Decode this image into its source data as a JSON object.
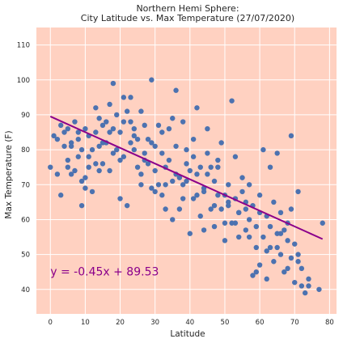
{
  "chart_data": {
    "type": "scatter",
    "title_line1": "Northern Hemi Sphere:",
    "title_line2": "City Latitude vs. Max Temperature (27/07/2020)",
    "xlabel": "Latitude",
    "ylabel": "Max Temperature (F)",
    "xlim": [
      -4,
      82
    ],
    "ylim": [
      33,
      115
    ],
    "x_ticks": [
      0,
      10,
      20,
      30,
      40,
      50,
      60,
      70,
      80
    ],
    "y_ticks": [
      40,
      50,
      60,
      70,
      80,
      90,
      100,
      110
    ],
    "grid": true,
    "background": "#FFD1C1",
    "grid_color": "#FFFFFF",
    "marker_color": "#4C72B0",
    "regression": {
      "slope": -0.45,
      "intercept": 89.53,
      "x_range": [
        0,
        78
      ],
      "color": "#8B008B",
      "equation": "y = -0.45x + 89.53"
    },
    "points": [
      [
        0,
        75
      ],
      [
        1,
        84
      ],
      [
        2,
        83
      ],
      [
        3,
        67
      ],
      [
        4,
        81
      ],
      [
        5,
        75
      ],
      [
        6,
        73
      ],
      [
        5,
        86
      ],
      [
        7,
        88
      ],
      [
        6,
        82
      ],
      [
        8,
        85
      ],
      [
        7,
        74
      ],
      [
        9,
        71
      ],
      [
        9,
        80
      ],
      [
        10,
        72
      ],
      [
        10,
        69
      ],
      [
        8,
        83
      ],
      [
        9,
        64
      ],
      [
        11,
        75
      ],
      [
        11,
        84
      ],
      [
        12,
        68
      ],
      [
        12,
        80
      ],
      [
        13,
        85
      ],
      [
        13,
        92
      ],
      [
        14,
        81
      ],
      [
        14,
        89
      ],
      [
        15,
        82
      ],
      [
        15,
        76
      ],
      [
        16,
        82
      ],
      [
        16,
        88
      ],
      [
        17,
        93
      ],
      [
        17,
        74
      ],
      [
        18,
        99
      ],
      [
        18,
        86
      ],
      [
        19,
        80
      ],
      [
        19,
        90
      ],
      [
        20,
        85
      ],
      [
        20,
        66
      ],
      [
        21,
        88
      ],
      [
        21,
        78
      ],
      [
        22,
        64
      ],
      [
        22,
        91
      ],
      [
        23,
        82
      ],
      [
        23,
        95
      ],
      [
        24,
        84
      ],
      [
        24,
        80
      ],
      [
        25,
        83
      ],
      [
        25,
        75
      ],
      [
        26,
        91
      ],
      [
        26,
        70
      ],
      [
        27,
        79
      ],
      [
        27,
        87
      ],
      [
        28,
        76
      ],
      [
        28,
        83
      ],
      [
        29,
        100
      ],
      [
        29,
        69
      ],
      [
        30,
        74
      ],
      [
        30,
        81
      ],
      [
        31,
        87
      ],
      [
        31,
        70
      ],
      [
        32,
        67
      ],
      [
        32,
        79
      ],
      [
        33,
        75
      ],
      [
        33,
        63
      ],
      [
        34,
        77
      ],
      [
        34,
        86
      ],
      [
        35,
        89
      ],
      [
        35,
        60
      ],
      [
        36,
        97
      ],
      [
        36,
        81
      ],
      [
        37,
        72
      ],
      [
        37,
        63
      ],
      [
        38,
        70
      ],
      [
        38,
        88
      ],
      [
        39,
        71
      ],
      [
        39,
        80
      ],
      [
        40,
        74
      ],
      [
        40,
        56
      ],
      [
        41,
        66
      ],
      [
        41,
        83
      ],
      [
        42,
        92
      ],
      [
        42,
        73
      ],
      [
        43,
        75
      ],
      [
        43,
        61
      ],
      [
        44,
        69
      ],
      [
        44,
        57
      ],
      [
        45,
        79
      ],
      [
        45,
        86
      ],
      [
        46,
        63
      ],
      [
        46,
        75
      ],
      [
        47,
        58
      ],
      [
        47,
        71
      ],
      [
        48,
        67
      ],
      [
        48,
        77
      ],
      [
        49,
        82
      ],
      [
        49,
        63
      ],
      [
        50,
        54
      ],
      [
        50,
        59
      ],
      [
        51,
        70
      ],
      [
        51,
        65
      ],
      [
        52,
        94
      ],
      [
        52,
        59
      ],
      [
        53,
        66
      ],
      [
        53,
        78
      ],
      [
        54,
        62
      ],
      [
        54,
        55
      ],
      [
        55,
        68
      ],
      [
        55,
        72
      ],
      [
        56,
        63
      ],
      [
        56,
        57
      ],
      [
        57,
        70
      ],
      [
        57,
        60
      ],
      [
        58,
        44
      ],
      [
        58,
        64
      ],
      [
        59,
        58
      ],
      [
        59,
        52
      ],
      [
        60,
        67
      ],
      [
        60,
        62
      ],
      [
        61,
        80
      ],
      [
        61,
        55
      ],
      [
        62,
        43
      ],
      [
        62,
        51
      ],
      [
        63,
        75
      ],
      [
        63,
        58
      ],
      [
        64,
        48
      ],
      [
        64,
        65
      ],
      [
        65,
        56
      ],
      [
        65,
        79
      ],
      [
        66,
        50
      ],
      [
        66,
        62
      ],
      [
        67,
        45
      ],
      [
        67,
        57
      ],
      [
        68,
        46
      ],
      [
        68,
        59
      ],
      [
        69,
        84
      ],
      [
        69,
        63
      ],
      [
        70,
        42
      ],
      [
        70,
        53
      ],
      [
        71,
        48
      ],
      [
        71,
        68
      ],
      [
        72,
        41
      ],
      [
        72,
        46
      ],
      [
        73,
        39
      ],
      [
        74,
        43
      ],
      [
        77,
        40
      ],
      [
        78,
        59
      ],
      [
        3,
        87
      ],
      [
        4,
        85
      ],
      [
        6,
        81
      ],
      [
        10,
        86
      ],
      [
        13,
        76
      ],
      [
        15,
        87
      ],
      [
        18,
        79
      ],
      [
        21,
        95
      ],
      [
        24,
        86
      ],
      [
        27,
        77
      ],
      [
        30,
        68
      ],
      [
        33,
        70
      ],
      [
        36,
        73
      ],
      [
        39,
        76
      ],
      [
        42,
        67
      ],
      [
        45,
        73
      ],
      [
        48,
        75
      ],
      [
        51,
        64
      ],
      [
        54,
        62
      ],
      [
        57,
        55
      ],
      [
        60,
        47
      ],
      [
        63,
        52
      ],
      [
        66,
        56
      ],
      [
        69,
        49
      ],
      [
        2,
        73
      ],
      [
        5,
        77
      ],
      [
        8,
        78
      ],
      [
        11,
        78
      ],
      [
        14,
        74
      ],
      [
        17,
        85
      ],
      [
        20,
        77
      ],
      [
        23,
        88
      ],
      [
        26,
        73
      ],
      [
        29,
        82
      ],
      [
        32,
        85
      ],
      [
        35,
        71
      ],
      [
        38,
        66
      ],
      [
        41,
        78
      ],
      [
        44,
        68
      ],
      [
        47,
        64
      ],
      [
        50,
        67
      ],
      [
        53,
        59
      ],
      [
        56,
        65
      ],
      [
        59,
        45
      ],
      [
        62,
        61
      ],
      [
        65,
        52
      ],
      [
        68,
        54
      ],
      [
        71,
        50
      ],
      [
        74,
        41
      ]
    ]
  }
}
